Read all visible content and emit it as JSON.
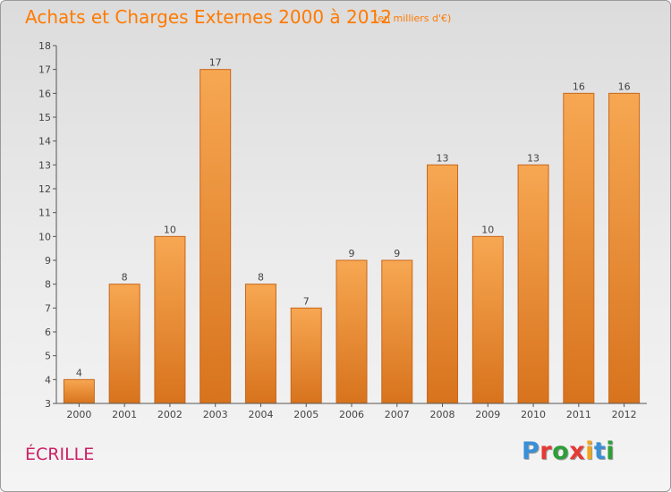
{
  "header": {
    "title": "Achats et Charges Externes 2000 à 2012",
    "unit": "(en milliers d'€)"
  },
  "footer": {
    "commune": "ÉCRILLE",
    "logo_text": "Proxiti",
    "logo_colors": [
      "#3a8fd6",
      "#e53935",
      "#2e9e3a",
      "#e53935",
      "#f2a51a",
      "#3a8fd6",
      "#2e9e3a"
    ]
  },
  "chart_data": {
    "type": "bar",
    "categories": [
      "2000",
      "2001",
      "2002",
      "2003",
      "2004",
      "2005",
      "2006",
      "2007",
      "2008",
      "2009",
      "2010",
      "2011",
      "2012"
    ],
    "values": [
      4,
      8,
      10,
      17,
      8,
      7,
      9,
      9,
      13,
      10,
      13,
      16,
      16
    ],
    "ylim": [
      3,
      18
    ],
    "yticks": [
      3,
      4,
      5,
      6,
      7,
      8,
      9,
      10,
      11,
      12,
      13,
      14,
      15,
      16,
      17,
      18
    ],
    "data_labels": true,
    "grid": false,
    "colors": {
      "bar_light": "#f7a752",
      "bar_dark": "#d8731d",
      "bar_edge": "#c8661a",
      "axis": "#555555",
      "text": "#444444"
    }
  }
}
